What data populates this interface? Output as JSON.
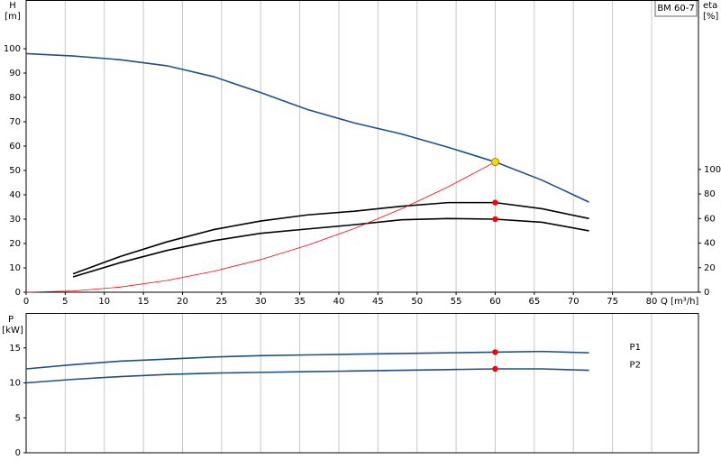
{
  "chart_data": [
    {
      "type": "line",
      "title": "BM 60-7",
      "ylabel": "H",
      "yunit": "[m]",
      "y2label": "eta",
      "y2unit": "[%]",
      "xlabel": "Q [m³/h]",
      "xlim": [
        0,
        86
      ],
      "xticks": [
        0,
        5,
        10,
        15,
        20,
        25,
        30,
        35,
        40,
        45,
        50,
        55,
        60,
        65,
        70,
        75,
        80
      ],
      "ylim": [
        0,
        120
      ],
      "yticks": [
        0,
        10,
        20,
        30,
        40,
        50,
        60,
        70,
        80,
        90,
        100
      ],
      "y2lim": [
        0,
        238
      ],
      "y2ticks": [
        0,
        20,
        40,
        60,
        80,
        100
      ],
      "grid": "x",
      "series": [
        {
          "color": "#1f4e8c",
          "x": [
            0,
            6,
            12,
            18,
            24,
            30,
            36,
            42,
            48,
            54,
            60,
            66,
            72
          ],
          "values": [
            98,
            97,
            95.5,
            93,
            88.5,
            82,
            75,
            69.5,
            65,
            59.5,
            53.5,
            46,
            37
          ]
        },
        {
          "color": "#000000",
          "axis": "y2",
          "x": [
            6,
            12,
            18,
            24,
            30,
            36,
            42,
            48,
            54,
            60,
            66,
            72
          ],
          "values": [
            15,
            29,
            41,
            51,
            58,
            63,
            66,
            70,
            73,
            73,
            68,
            60
          ]
        },
        {
          "color": "#000000",
          "axis": "y2",
          "x": [
            6,
            12,
            18,
            24,
            30,
            36,
            42,
            48,
            54,
            60,
            66,
            72
          ],
          "values": [
            12.5,
            24,
            34,
            42,
            48,
            51.5,
            55,
            59,
            60,
            59.5,
            57,
            50
          ]
        },
        {
          "color": "#ff0000",
          "x": [
            0,
            6,
            12,
            18,
            24,
            30,
            36,
            42,
            48,
            54,
            60
          ],
          "values": [
            0,
            0.5,
            2.1,
            4.8,
            8.6,
            13.4,
            19.3,
            26.2,
            34.2,
            43.3,
            53.5
          ]
        }
      ],
      "points": [
        {
          "x": 60,
          "y": 53.5,
          "color": "#ffd700"
        },
        {
          "x": 60,
          "y": 73,
          "axis": "y2",
          "color": "#ff0000"
        },
        {
          "x": 60,
          "y": 59.5,
          "axis": "y2",
          "color": "#ff0000"
        }
      ]
    },
    {
      "type": "line",
      "ylabel": "P",
      "yunit": "[kW]",
      "xlim": [
        0,
        86
      ],
      "ylim": [
        0,
        20
      ],
      "yticks": [
        0,
        5,
        10,
        15
      ],
      "grid": "x",
      "series": [
        {
          "name": "P1",
          "color": "#1f4e8c",
          "x": [
            0,
            6,
            12,
            18,
            24,
            30,
            36,
            42,
            48,
            54,
            60,
            66,
            72
          ],
          "values": [
            12,
            12.6,
            13.1,
            13.4,
            13.7,
            13.9,
            14,
            14.1,
            14.2,
            14.3,
            14.4,
            14.5,
            14.3
          ]
        },
        {
          "name": "P2",
          "color": "#1f4e8c",
          "x": [
            0,
            6,
            12,
            18,
            24,
            30,
            36,
            42,
            48,
            54,
            60,
            66,
            72
          ],
          "values": [
            10,
            10.5,
            10.9,
            11.2,
            11.4,
            11.5,
            11.6,
            11.7,
            11.8,
            11.9,
            12,
            12,
            11.8
          ]
        }
      ],
      "points": [
        {
          "x": 60,
          "y": 14.4,
          "color": "#ff0000"
        },
        {
          "x": 60,
          "y": 12,
          "color": "#ff0000"
        }
      ]
    }
  ]
}
